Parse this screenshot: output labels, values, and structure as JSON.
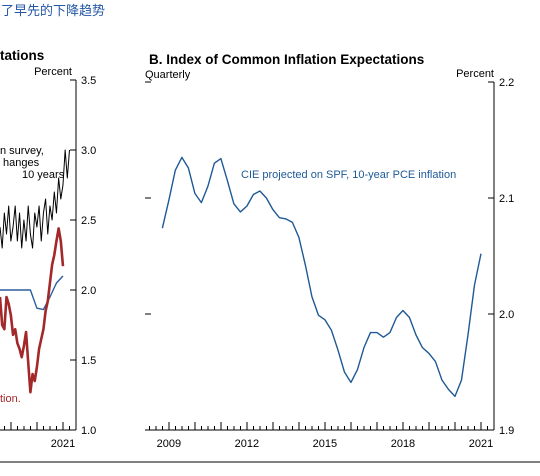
{
  "page": {
    "header_text": "了早先的下降趋势"
  },
  "chart_data": [
    {
      "type": "line",
      "title": "tations",
      "ylabel": "Percent",
      "ylim": [
        1.0,
        3.5
      ],
      "yticks": [
        "3.5",
        "3.0",
        "2.5",
        "2.0",
        "1.5",
        "1.0"
      ],
      "xlim": [
        "2018-08",
        "2021-07"
      ],
      "xticks": [
        "2021"
      ],
      "grid": false,
      "annotations": [
        {
          "text": "n survey,",
          "color": "#000000"
        },
        {
          "text": "hanges",
          "color": "#000000"
        },
        {
          "text": "10 years",
          "color": "#000000"
        },
        {
          "text": "tion.",
          "color": "#a3282a"
        }
      ],
      "series": [
        {
          "color": "#000000",
          "x": [
            "2018-08",
            "2018-09",
            "2018-10",
            "2018-11",
            "2018-12",
            "2019-01",
            "2019-02",
            "2019-03",
            "2019-04",
            "2019-05",
            "2019-06",
            "2019-07",
            "2019-08",
            "2019-09",
            "2019-10",
            "2019-11",
            "2019-12",
            "2020-01",
            "2020-02",
            "2020-03",
            "2020-04",
            "2020-05",
            "2020-06",
            "2020-07",
            "2020-08",
            "2020-09",
            "2020-10",
            "2020-11",
            "2020-12",
            "2021-01",
            "2021-02",
            "2021-03",
            "2021-04"
          ],
          "y": [
            2.45,
            2.3,
            2.55,
            2.4,
            2.6,
            2.35,
            2.45,
            2.6,
            2.35,
            2.55,
            2.3,
            2.5,
            2.35,
            2.6,
            2.4,
            2.3,
            2.55,
            2.45,
            2.6,
            2.35,
            2.55,
            2.65,
            2.4,
            2.6,
            2.5,
            2.7,
            2.55,
            2.8,
            2.65,
            2.75,
            3.0,
            2.8,
            3.0
          ]
        },
        {
          "color": "#2b5d9e",
          "x": [
            "2018Q3",
            "2018Q4",
            "2019Q1",
            "2019Q2",
            "2019Q3",
            "2019Q4",
            "2020Q1",
            "2020Q2",
            "2020Q3",
            "2020Q4",
            "2021Q1"
          ],
          "y": [
            2.0,
            2.0,
            2.0,
            2.0,
            2.0,
            2.0,
            1.87,
            1.86,
            1.95,
            2.05,
            2.1
          ]
        },
        {
          "color": "#a3282a",
          "x": [
            "2018-08",
            "2018-09",
            "2018-10",
            "2018-11",
            "2018-12",
            "2019-01",
            "2019-02",
            "2019-03",
            "2019-04",
            "2019-05",
            "2019-06",
            "2019-07",
            "2019-08",
            "2019-09",
            "2019-10",
            "2019-11",
            "2019-12",
            "2020-01",
            "2020-02",
            "2020-03",
            "2020-04",
            "2020-05",
            "2020-06",
            "2020-07",
            "2020-08",
            "2020-09",
            "2020-10",
            "2020-11",
            "2020-12",
            "2021-01"
          ],
          "y": [
            1.95,
            1.75,
            1.72,
            1.95,
            1.9,
            1.82,
            1.68,
            1.72,
            1.62,
            1.58,
            1.52,
            1.6,
            1.7,
            1.48,
            1.27,
            1.4,
            1.35,
            1.45,
            1.58,
            1.65,
            1.72,
            1.85,
            1.92,
            2.05,
            2.18,
            2.25,
            2.35,
            2.44,
            2.35,
            2.17
          ]
        }
      ]
    },
    {
      "type": "line",
      "title": "B. Index of Common Inflation Expectations",
      "subtitle": "Quarterly",
      "ylabel": "Percent",
      "ylim": [
        1.9,
        2.2
      ],
      "yticks": [
        "2.2",
        "2.1",
        "2.0",
        "1.9"
      ],
      "xlim": [
        "2008-02",
        "2021-07"
      ],
      "xticks": [
        "2009",
        "2012",
        "2015",
        "2018",
        "2021"
      ],
      "grid": false,
      "series": [
        {
          "name": "CIE projected on SPF, 10-year PCE inflation",
          "color": "#1f5a96",
          "x": [
            "2008Q4",
            "2009Q1",
            "2009Q2",
            "2009Q3",
            "2009Q4",
            "2010Q1",
            "2010Q2",
            "2010Q3",
            "2010Q4",
            "2011Q1",
            "2011Q2",
            "2011Q3",
            "2011Q4",
            "2012Q1",
            "2012Q2",
            "2012Q3",
            "2012Q4",
            "2013Q1",
            "2013Q2",
            "2013Q3",
            "2013Q4",
            "2014Q1",
            "2014Q2",
            "2014Q3",
            "2014Q4",
            "2015Q1",
            "2015Q2",
            "2015Q3",
            "2015Q4",
            "2016Q1",
            "2016Q2",
            "2016Q3",
            "2016Q4",
            "2017Q1",
            "2017Q2",
            "2017Q3",
            "2017Q4",
            "2018Q1",
            "2018Q2",
            "2018Q3",
            "2018Q4",
            "2019Q1",
            "2019Q2",
            "2019Q3",
            "2019Q4",
            "2020Q1",
            "2020Q2",
            "2020Q3",
            "2020Q4",
            "2021Q1"
          ],
          "y": [
            2.074,
            2.098,
            2.124,
            2.135,
            2.126,
            2.104,
            2.096,
            2.11,
            2.13,
            2.134,
            2.115,
            2.095,
            2.088,
            2.093,
            2.103,
            2.106,
            2.1,
            2.09,
            2.083,
            2.082,
            2.079,
            2.066,
            2.042,
            2.015,
            1.999,
            1.995,
            1.986,
            1.969,
            1.95,
            1.941,
            1.952,
            1.971,
            1.984,
            1.984,
            1.98,
            1.984,
            1.997,
            2.003,
            1.997,
            1.982,
            1.971,
            1.966,
            1.959,
            1.943,
            1.935,
            1.929,
            1.943,
            1.982,
            2.025,
            2.052
          ]
        }
      ]
    }
  ]
}
